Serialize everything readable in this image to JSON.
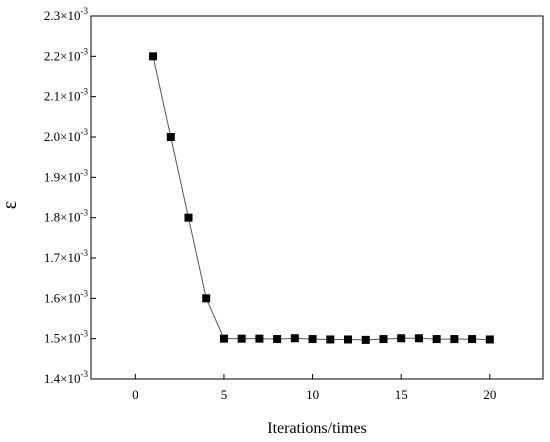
{
  "chart_data": {
    "type": "line",
    "xlabel": "Iterations/times",
    "ylabel": "ε",
    "xlim": [
      -2.5,
      23
    ],
    "ylim": [
      0.0014,
      0.0023
    ],
    "x_ticks": [
      0,
      5,
      10,
      15,
      20
    ],
    "y_ticks": [
      {
        "value": 0.0014,
        "mantissa": "1.4×10",
        "exp": "-3"
      },
      {
        "value": 0.0015,
        "mantissa": "1.5×10",
        "exp": "-3"
      },
      {
        "value": 0.0016,
        "mantissa": "1.6×10",
        "exp": "-3"
      },
      {
        "value": 0.0017,
        "mantissa": "1.7×10",
        "exp": "-3"
      },
      {
        "value": 0.0018,
        "mantissa": "1.8×10",
        "exp": "-3"
      },
      {
        "value": 0.0019,
        "mantissa": "1.9×10",
        "exp": "-3"
      },
      {
        "value": 0.002,
        "mantissa": "2.0×10",
        "exp": "-3"
      },
      {
        "value": 0.0021,
        "mantissa": "2.1×10",
        "exp": "-3"
      },
      {
        "value": 0.0022,
        "mantissa": "2.2×10",
        "exp": "-3"
      },
      {
        "value": 0.0023,
        "mantissa": "2.3×10",
        "exp": "-3"
      }
    ],
    "grid": false,
    "marker": "square",
    "colors": {
      "line": "#555555",
      "marker": "#000000",
      "axis": "#000000"
    },
    "series": [
      {
        "x": [
          1,
          2,
          3,
          4,
          5,
          6,
          7,
          8,
          9,
          10,
          11,
          12,
          13,
          14,
          15,
          16,
          17,
          18,
          19,
          20
        ],
        "y": [
          0.0022,
          0.002,
          0.0018,
          0.0016,
          0.0015,
          0.0015,
          0.0015,
          0.001499,
          0.001501,
          0.001499,
          0.001498,
          0.001498,
          0.001497,
          0.001499,
          0.001501,
          0.001501,
          0.001499,
          0.001499,
          0.001499,
          0.001498
        ]
      }
    ]
  }
}
